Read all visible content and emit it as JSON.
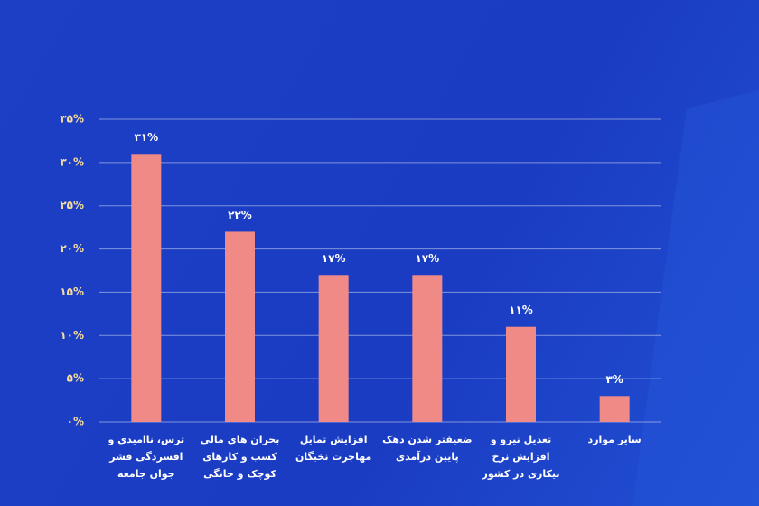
{
  "chart_data": {
    "type": "bar",
    "categories": [
      "ترس، ناامیدی و افسردگی قشر جوان جامعه",
      "بحران های مالی کسب و کارهای کوچک و خانگی",
      "افزایش تمایل مهاجرت نخبگان",
      "ضعیفتر شدن دهک پایین درآمدی",
      "تعدیل نیرو و افزایش نرخ بیکاری در کشور",
      "سایر موارد"
    ],
    "values": [
      31,
      22,
      17,
      17,
      11,
      3
    ],
    "value_labels": [
      "۳۱%",
      "۲۲%",
      "۱۷%",
      "۱۷%",
      "۱۱%",
      "۳%"
    ],
    "color": "#f08a86",
    "ylim": [
      0,
      35
    ],
    "yticks": [
      {
        "value": 0,
        "label": "۰%"
      },
      {
        "value": 5,
        "label": "۵%"
      },
      {
        "value": 10,
        "label": "۱۰%"
      },
      {
        "value": 15,
        "label": "۱۵%"
      },
      {
        "value": 20,
        "label": "۲۰%"
      },
      {
        "value": 25,
        "label": "۲۵%"
      },
      {
        "value": 30,
        "label": "۳۰%"
      },
      {
        "value": 35,
        "label": "۳۵%"
      }
    ],
    "grid": true
  }
}
